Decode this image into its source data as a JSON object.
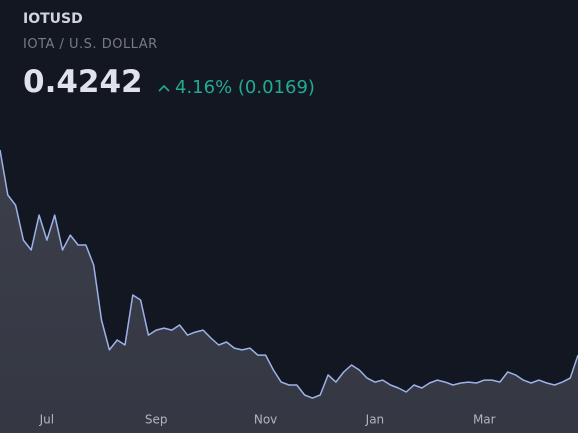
{
  "chart_data": {
    "type": "area",
    "title": "IOTUSD",
    "subtitle": "IOTA / U.S. DOLLAR",
    "price": "0.4242",
    "change": "4.16% (0.0169)",
    "categories": [
      null,
      null,
      null,
      null,
      null,
      null,
      "Jul",
      null,
      null,
      null,
      null,
      null,
      null,
      null,
      null,
      null,
      null,
      null,
      null,
      null,
      "Sep",
      null,
      null,
      null,
      null,
      null,
      null,
      null,
      null,
      null,
      null,
      null,
      null,
      null,
      "Nov",
      null,
      null,
      null,
      null,
      null,
      null,
      null,
      null,
      null,
      null,
      null,
      null,
      null,
      "Jan",
      null,
      null,
      null,
      null,
      null,
      null,
      null,
      null,
      null,
      null,
      null,
      null,
      null,
      "Mar",
      null,
      null,
      null,
      null,
      null,
      null,
      null,
      null,
      null,
      null,
      null,
      null
    ],
    "values": [
      1.54,
      1.295,
      1.24,
      1.05,
      0.996,
      1.186,
      1.05,
      1.186,
      0.996,
      1.077,
      1.023,
      1.023,
      0.914,
      0.615,
      0.452,
      0.506,
      0.479,
      0.751,
      0.724,
      0.533,
      0.56,
      0.571,
      0.56,
      0.588,
      0.533,
      0.549,
      0.56,
      0.517,
      0.479,
      0.495,
      0.462,
      0.452,
      0.462,
      0.424,
      0.424,
      0.343,
      0.277,
      0.261,
      0.261,
      0.207,
      0.19,
      0.207,
      0.316,
      0.277,
      0.332,
      0.37,
      0.343,
      0.299,
      0.277,
      0.288,
      0.261,
      0.245,
      0.223,
      0.261,
      0.245,
      0.272,
      0.288,
      0.277,
      0.261,
      0.272,
      0.277,
      0.272,
      0.288,
      0.288,
      0.277,
      0.332,
      0.316,
      0.288,
      0.272,
      0.288,
      0.272,
      0.261,
      0.277,
      0.299,
      0.4242
    ],
    "color": "#9db2e8",
    "ylim": [
      0,
      1.6
    ]
  }
}
